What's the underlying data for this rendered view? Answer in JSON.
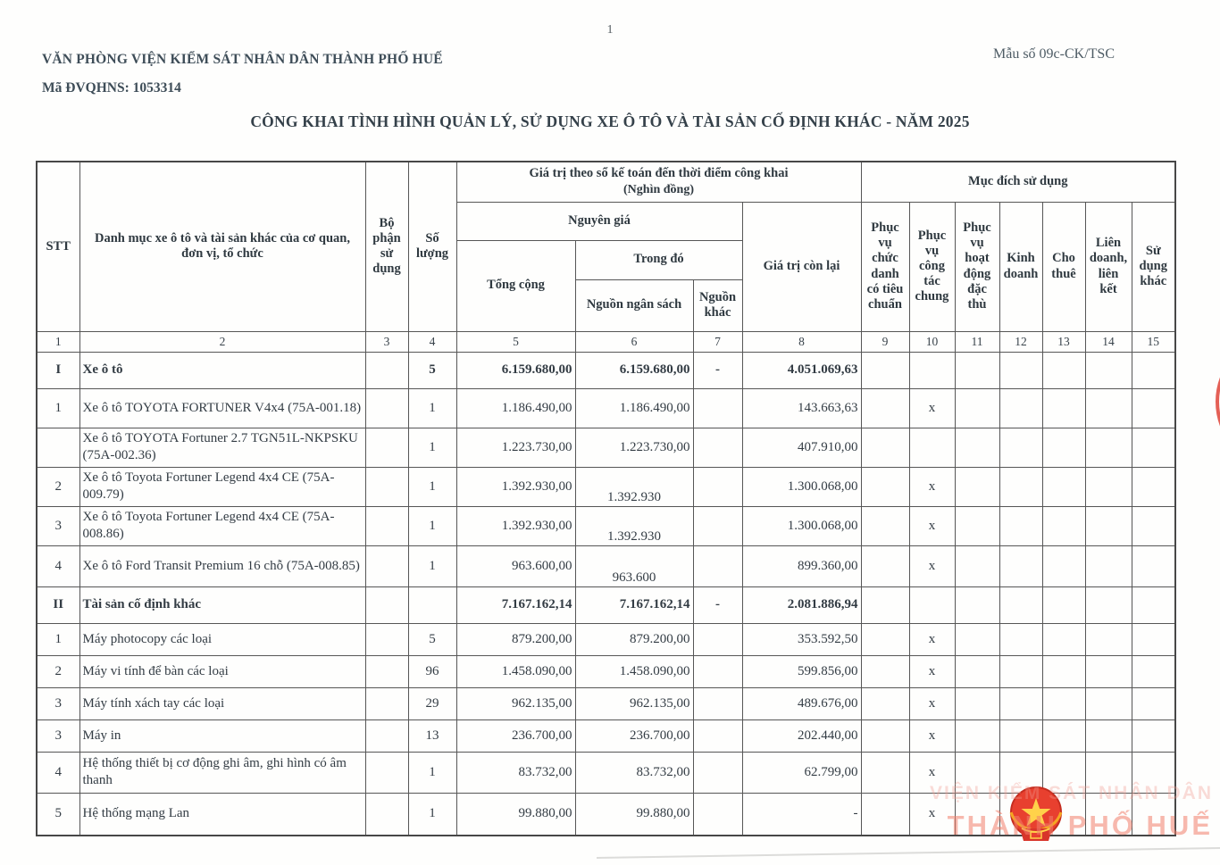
{
  "page": {
    "number": "1"
  },
  "header": {
    "org_name": "VĂN PHÒNG VIỆN KIỂM SÁT NHÂN DÂN THÀNH PHỐ HUẾ",
    "org_code": "Mã ĐVQHNS: 1053314",
    "form_number": "Mẫu số 09c-CK/TSC",
    "title": "CÔNG KHAI TÌNH HÌNH QUẢN LÝ, SỬ DỤNG XE Ô TÔ VÀ TÀI SẢN CỐ ĐỊNH KHÁC - NĂM 2025"
  },
  "table": {
    "headers": {
      "stt": "STT",
      "category": "Danh mục xe ô tô và tài sản khác của cơ quan, đơn vị, tổ chức",
      "department": "Bộ phận sử dụng",
      "quantity": "Số lượng",
      "book_value_group": "Giá trị theo sổ kế toán đến thời điểm công khai",
      "book_value_unit": "(Nghìn đồng)",
      "original_price": "Nguyên giá",
      "total": "Tổng cộng",
      "of_which": "Trong đó",
      "budget_source": "Nguồn ngân sách",
      "other_source": "Nguồn khác",
      "remaining_value": "Giá trị còn lại",
      "usage_purpose_group": "Mục đích sử dụng",
      "purpose_cols": [
        "Phục vụ chức danh có tiêu chuẩn",
        "Phục vụ công tác chung",
        "Phục vụ hoạt động đặc thù",
        "Kinh doanh",
        "Cho thuê",
        "Liên doanh, liên kết",
        "Sử dụng khác"
      ]
    },
    "column_numbers": [
      "1",
      "2",
      "3",
      "4",
      "5",
      "6",
      "7",
      "8",
      "9",
      "10",
      "11",
      "12",
      "13",
      "14",
      "15"
    ],
    "rows": [
      {
        "stt": "I",
        "name": "Xe ô tô",
        "dept": "",
        "qty": "5",
        "total": "6.159.680,00",
        "budget": "6.159.680,00",
        "budget_low": false,
        "other": "-",
        "remain": "4.051.069,63",
        "marks": [
          "",
          "",
          "",
          "",
          "",
          "",
          ""
        ],
        "kind": "section",
        "h": "rh40"
      },
      {
        "stt": "1",
        "name": "Xe ô tô TOYOTA FORTUNER V4x4 (75A-001.18)",
        "dept": "",
        "qty": "1",
        "total": "1.186.490,00",
        "budget": "1.186.490,00",
        "budget_low": false,
        "other": "",
        "remain": "143.663,63",
        "marks": [
          "",
          "x",
          "",
          "",
          "",
          "",
          ""
        ],
        "kind": "item",
        "h": "rh43"
      },
      {
        "stt": "",
        "name": "Xe ô tô TOYOTA Fortuner 2.7 TGN51L-NKPSKU (75A-002.36)",
        "dept": "",
        "qty": "1",
        "total": "1.223.730,00",
        "budget": "1.223.730,00",
        "budget_low": false,
        "other": "",
        "remain": "407.910,00",
        "marks": [
          "",
          "",
          "",
          "",
          "",
          "",
          ""
        ],
        "kind": "item",
        "h": "rh43"
      },
      {
        "stt": "2",
        "name": "Xe ô tô Toyota Fortuner Legend 4x4 CE (75A-009.79)",
        "dept": "",
        "qty": "1",
        "total": "1.392.930,00",
        "budget": "1.392.930",
        "budget_low": true,
        "other": "",
        "remain": "1.300.068,00",
        "marks": [
          "",
          "x",
          "",
          "",
          "",
          "",
          ""
        ],
        "kind": "item",
        "h": "rh43"
      },
      {
        "stt": "3",
        "name": "Xe ô tô Toyota Fortuner Legend 4x4 CE (75A-008.86)",
        "dept": "",
        "qty": "1",
        "total": "1.392.930,00",
        "budget": "1.392.930",
        "budget_low": true,
        "other": "",
        "remain": "1.300.068,00",
        "marks": [
          "",
          "x",
          "",
          "",
          "",
          "",
          ""
        ],
        "kind": "item",
        "h": "rh43"
      },
      {
        "stt": "4",
        "name": "Xe ô tô Ford Transit Premium 16 chỗ (75A-008.85)",
        "dept": "",
        "qty": "1",
        "total": "963.600,00",
        "budget": "963.600",
        "budget_low": true,
        "other": "",
        "remain": "899.360,00",
        "marks": [
          "",
          "x",
          "",
          "",
          "",
          "",
          ""
        ],
        "kind": "item",
        "h": "rh45"
      },
      {
        "stt": "II",
        "name": "Tài sản cố định khác",
        "dept": "",
        "qty": "",
        "total": "7.167.162,14",
        "budget": "7.167.162,14",
        "budget_low": false,
        "other": "-",
        "remain": "2.081.886,94",
        "marks": [
          "",
          "",
          "",
          "",
          "",
          "",
          ""
        ],
        "kind": "section",
        "h": "rh40"
      },
      {
        "stt": "1",
        "name": "Máy photocopy các loại",
        "dept": "",
        "qty": "5",
        "total": "879.200,00",
        "budget": "879.200,00",
        "budget_low": false,
        "other": "",
        "remain": "353.592,50",
        "marks": [
          "",
          "x",
          "",
          "",
          "",
          "",
          ""
        ],
        "kind": "item",
        "h": "rh35"
      },
      {
        "stt": "2",
        "name": "Máy vi tính để bàn các loại",
        "dept": "",
        "qty": "96",
        "total": "1.458.090,00",
        "budget": "1.458.090,00",
        "budget_low": false,
        "other": "",
        "remain": "599.856,00",
        "marks": [
          "",
          "x",
          "",
          "",
          "",
          "",
          ""
        ],
        "kind": "item",
        "h": "rh35"
      },
      {
        "stt": "3",
        "name": "Máy tính xách tay các loại",
        "dept": "",
        "qty": "29",
        "total": "962.135,00",
        "budget": "962.135,00",
        "budget_low": false,
        "other": "",
        "remain": "489.676,00",
        "marks": [
          "",
          "x",
          "",
          "",
          "",
          "",
          ""
        ],
        "kind": "item",
        "h": "rh35"
      },
      {
        "stt": "3",
        "name": "Máy in",
        "dept": "",
        "qty": "13",
        "total": "236.700,00",
        "budget": "236.700,00",
        "budget_low": false,
        "other": "",
        "remain": "202.440,00",
        "marks": [
          "",
          "x",
          "",
          "",
          "",
          "",
          ""
        ],
        "kind": "item",
        "h": "rh35"
      },
      {
        "stt": "4",
        "name": "Hệ thống thiết bị cơ động ghi âm, ghi hình có âm thanh",
        "dept": "",
        "qty": "1",
        "total": "83.732,00",
        "budget": "83.732,00",
        "budget_low": false,
        "other": "",
        "remain": "62.799,00",
        "marks": [
          "",
          "x",
          "",
          "",
          "",
          "",
          ""
        ],
        "kind": "item",
        "h": "rh45"
      },
      {
        "stt": "5",
        "name": "Hệ thống mạng Lan",
        "dept": "",
        "qty": "1",
        "total": "99.880,00",
        "budget": "99.880,00",
        "budget_low": false,
        "other": "",
        "remain": "-",
        "marks": [
          "",
          "x",
          "",
          "",
          "",
          "",
          ""
        ],
        "kind": "item",
        "h": "rh46"
      }
    ]
  },
  "stamp": {
    "text": "VIỆN KIỂM SÁT NHÂN DÂN"
  },
  "watermark": {
    "line1": "VIỆN KIỂM SÁT NHÂN DÂN",
    "line2": "THÀNH PHỐ HUẾ"
  },
  "colors": {
    "stamp_red": "#e0453a",
    "emblem_red": "#e8402f",
    "star_gold": "#ffd24a",
    "header_text": "#3e4d58"
  }
}
